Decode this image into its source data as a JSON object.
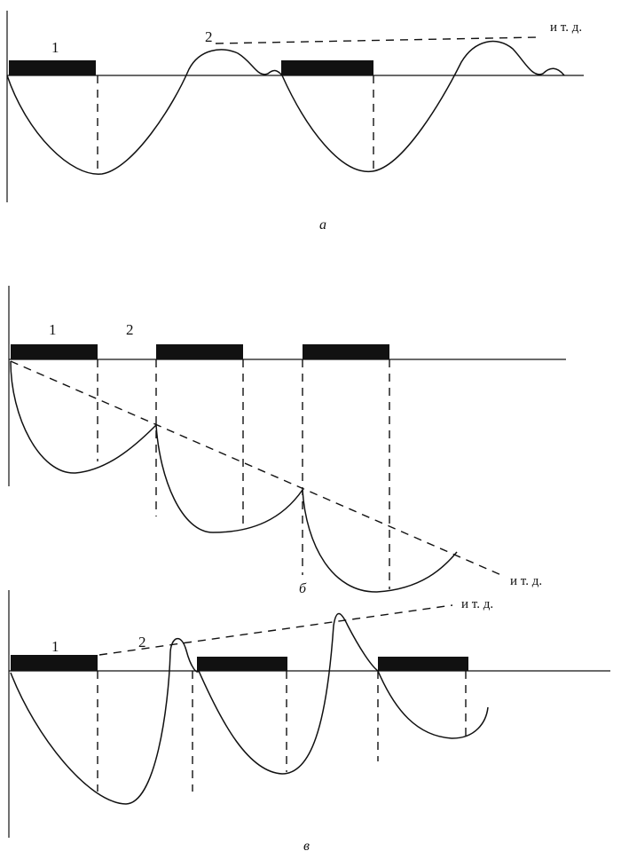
{
  "panels": [
    {
      "id": "a",
      "caption": "а",
      "label_phase1": "1",
      "label_phase2": "2",
      "etc_label": "и т. д."
    },
    {
      "id": "b",
      "caption": "б",
      "label_phase1": "1",
      "label_phase2": "2",
      "etc_label": "и т. д."
    },
    {
      "id": "v",
      "caption": "в",
      "label_phase1": "1",
      "label_phase2": "2",
      "etc_label": "и т. д."
    }
  ]
}
